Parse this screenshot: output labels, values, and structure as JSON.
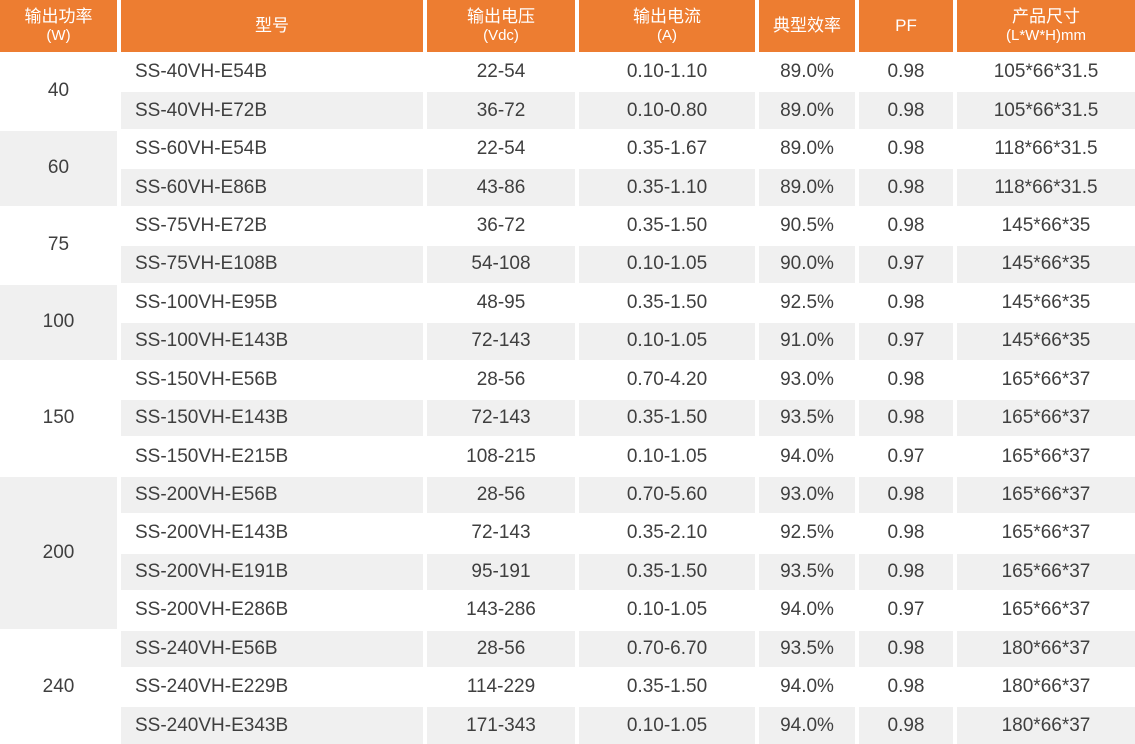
{
  "colors": {
    "header_bg": "#ED7D31",
    "header_text": "#FFFFFF",
    "stripe_bg": "#F0F0F0",
    "body_text": "#3F3F3F"
  },
  "table": {
    "columns": [
      {
        "id": "power",
        "label_line1": "输出功率",
        "label_line2": "(W)"
      },
      {
        "id": "model",
        "label_line1": "型号",
        "label_line2": ""
      },
      {
        "id": "voltage",
        "label_line1": "输出电压",
        "label_line2": "(Vdc)"
      },
      {
        "id": "current",
        "label_line1": "输出电流",
        "label_line2": "(A)"
      },
      {
        "id": "efficiency",
        "label_line1": "典型效率",
        "label_line2": ""
      },
      {
        "id": "pf",
        "label_line1": "PF",
        "label_line2": ""
      },
      {
        "id": "size",
        "label_line1": "产品尺寸",
        "label_line2": "(L*W*H)mm"
      }
    ],
    "groups": [
      {
        "power": "40",
        "rows": [
          {
            "model": "SS-40VH-E54B",
            "voltage": "22-54",
            "current": "0.10-1.10",
            "efficiency": "89.0%",
            "pf": "0.98",
            "size": "105*66*31.5"
          },
          {
            "model": "SS-40VH-E72B",
            "voltage": "36-72",
            "current": "0.10-0.80",
            "efficiency": "89.0%",
            "pf": "0.98",
            "size": "105*66*31.5"
          }
        ]
      },
      {
        "power": "60",
        "rows": [
          {
            "model": "SS-60VH-E54B",
            "voltage": "22-54",
            "current": "0.35-1.67",
            "efficiency": "89.0%",
            "pf": "0.98",
            "size": "118*66*31.5"
          },
          {
            "model": "SS-60VH-E86B",
            "voltage": "43-86",
            "current": "0.35-1.10",
            "efficiency": "89.0%",
            "pf": "0.98",
            "size": "118*66*31.5"
          }
        ]
      },
      {
        "power": "75",
        "rows": [
          {
            "model": "SS-75VH-E72B",
            "voltage": "36-72",
            "current": "0.35-1.50",
            "efficiency": "90.5%",
            "pf": "0.98",
            "size": "145*66*35"
          },
          {
            "model": "SS-75VH-E108B",
            "voltage": "54-108",
            "current": "0.10-1.05",
            "efficiency": "90.0%",
            "pf": "0.97",
            "size": "145*66*35"
          }
        ]
      },
      {
        "power": "100",
        "rows": [
          {
            "model": "SS-100VH-E95B",
            "voltage": "48-95",
            "current": "0.35-1.50",
            "efficiency": "92.5%",
            "pf": "0.98",
            "size": "145*66*35"
          },
          {
            "model": "SS-100VH-E143B",
            "voltage": "72-143",
            "current": "0.10-1.05",
            "efficiency": "91.0%",
            "pf": "0.97",
            "size": "145*66*35"
          }
        ]
      },
      {
        "power": "150",
        "rows": [
          {
            "model": "SS-150VH-E56B",
            "voltage": "28-56",
            "current": "0.70-4.20",
            "efficiency": "93.0%",
            "pf": "0.98",
            "size": "165*66*37"
          },
          {
            "model": "SS-150VH-E143B",
            "voltage": "72-143",
            "current": "0.35-1.50",
            "efficiency": "93.5%",
            "pf": "0.98",
            "size": "165*66*37"
          },
          {
            "model": "SS-150VH-E215B",
            "voltage": "108-215",
            "current": "0.10-1.05",
            "efficiency": "94.0%",
            "pf": "0.97",
            "size": "165*66*37"
          }
        ]
      },
      {
        "power": "200",
        "rows": [
          {
            "model": "SS-200VH-E56B",
            "voltage": "28-56",
            "current": "0.70-5.60",
            "efficiency": "93.0%",
            "pf": "0.98",
            "size": "165*66*37"
          },
          {
            "model": "SS-200VH-E143B",
            "voltage": "72-143",
            "current": "0.35-2.10",
            "efficiency": "92.5%",
            "pf": "0.98",
            "size": "165*66*37"
          },
          {
            "model": "SS-200VH-E191B",
            "voltage": "95-191",
            "current": "0.35-1.50",
            "efficiency": "93.5%",
            "pf": "0.98",
            "size": "165*66*37"
          },
          {
            "model": "SS-200VH-E286B",
            "voltage": "143-286",
            "current": "0.10-1.05",
            "efficiency": "94.0%",
            "pf": "0.97",
            "size": "165*66*37"
          }
        ]
      },
      {
        "power": "240",
        "rows": [
          {
            "model": "SS-240VH-E56B",
            "voltage": "28-56",
            "current": "0.70-6.70",
            "efficiency": "93.5%",
            "pf": "0.98",
            "size": "180*66*37"
          },
          {
            "model": "SS-240VH-E229B",
            "voltage": "114-229",
            "current": "0.35-1.50",
            "efficiency": "94.0%",
            "pf": "0.98",
            "size": "180*66*37"
          },
          {
            "model": "SS-240VH-E343B",
            "voltage": "171-343",
            "current": "0.10-1.05",
            "efficiency": "94.0%",
            "pf": "0.98",
            "size": "180*66*37"
          }
        ]
      }
    ]
  }
}
